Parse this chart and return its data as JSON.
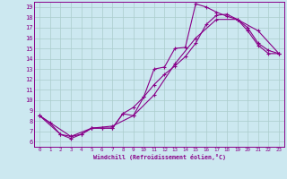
{
  "title": "",
  "xlabel": "Windchill (Refroidissement éolien,°C)",
  "bg_color": "#cce8f0",
  "line_color": "#880088",
  "xlim": [
    -0.5,
    23.5
  ],
  "ylim": [
    5.5,
    19.5
  ],
  "xticks": [
    0,
    1,
    2,
    3,
    4,
    5,
    6,
    7,
    8,
    9,
    10,
    11,
    12,
    13,
    14,
    15,
    16,
    17,
    18,
    19,
    20,
    21,
    22,
    23
  ],
  "yticks": [
    6,
    7,
    8,
    9,
    10,
    11,
    12,
    13,
    14,
    15,
    16,
    17,
    18,
    19
  ],
  "line1_x": [
    0,
    1,
    2,
    3,
    4,
    5,
    6,
    7,
    8,
    9,
    10,
    11,
    12,
    13,
    14,
    15,
    16,
    17,
    18,
    19,
    20,
    21,
    22,
    23
  ],
  "line1_y": [
    8.5,
    7.8,
    6.7,
    6.3,
    6.7,
    7.3,
    7.3,
    7.3,
    8.7,
    9.3,
    10.3,
    13.0,
    13.2,
    15.0,
    15.1,
    19.3,
    19.0,
    18.5,
    18.1,
    17.8,
    16.7,
    15.3,
    14.5,
    14.5
  ],
  "line2_x": [
    0,
    2,
    3,
    4,
    5,
    6,
    7,
    8,
    9,
    10,
    11,
    12,
    13,
    14,
    15,
    16,
    17,
    18,
    19,
    20,
    21,
    22,
    23
  ],
  "line2_y": [
    8.5,
    6.7,
    6.5,
    6.7,
    7.3,
    7.3,
    7.3,
    8.7,
    8.5,
    10.3,
    11.5,
    12.5,
    13.3,
    14.2,
    15.5,
    17.3,
    18.2,
    18.3,
    17.8,
    17.0,
    15.5,
    14.8,
    14.5
  ],
  "line3_x": [
    0,
    3,
    5,
    7,
    9,
    11,
    13,
    15,
    17,
    19,
    21,
    23
  ],
  "line3_y": [
    8.5,
    6.5,
    7.3,
    7.5,
    8.5,
    10.5,
    13.5,
    16.0,
    17.8,
    17.8,
    16.7,
    14.5
  ],
  "grid_color": "#aacccc",
  "marker": "+"
}
